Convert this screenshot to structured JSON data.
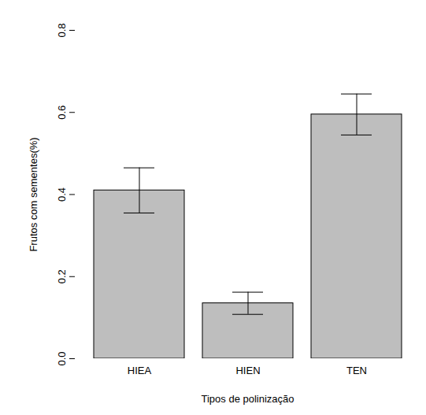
{
  "chart_data": {
    "type": "bar",
    "x_label": "Tipos de polinização",
    "y_label": "Frutos com sementes(%)",
    "categories": [
      "HIEA",
      "HIEN",
      "TEN"
    ],
    "values": [
      0.41,
      0.135,
      0.595
    ],
    "errors": [
      0.055,
      0.027,
      0.05
    ],
    "color": "#bebebe",
    "ylim": [
      0,
      0.8
    ],
    "yticks": [
      {
        "value": 0,
        "label": "0.0"
      },
      0.2,
      0.4,
      0.6,
      0.8
    ],
    "grid": false
  }
}
